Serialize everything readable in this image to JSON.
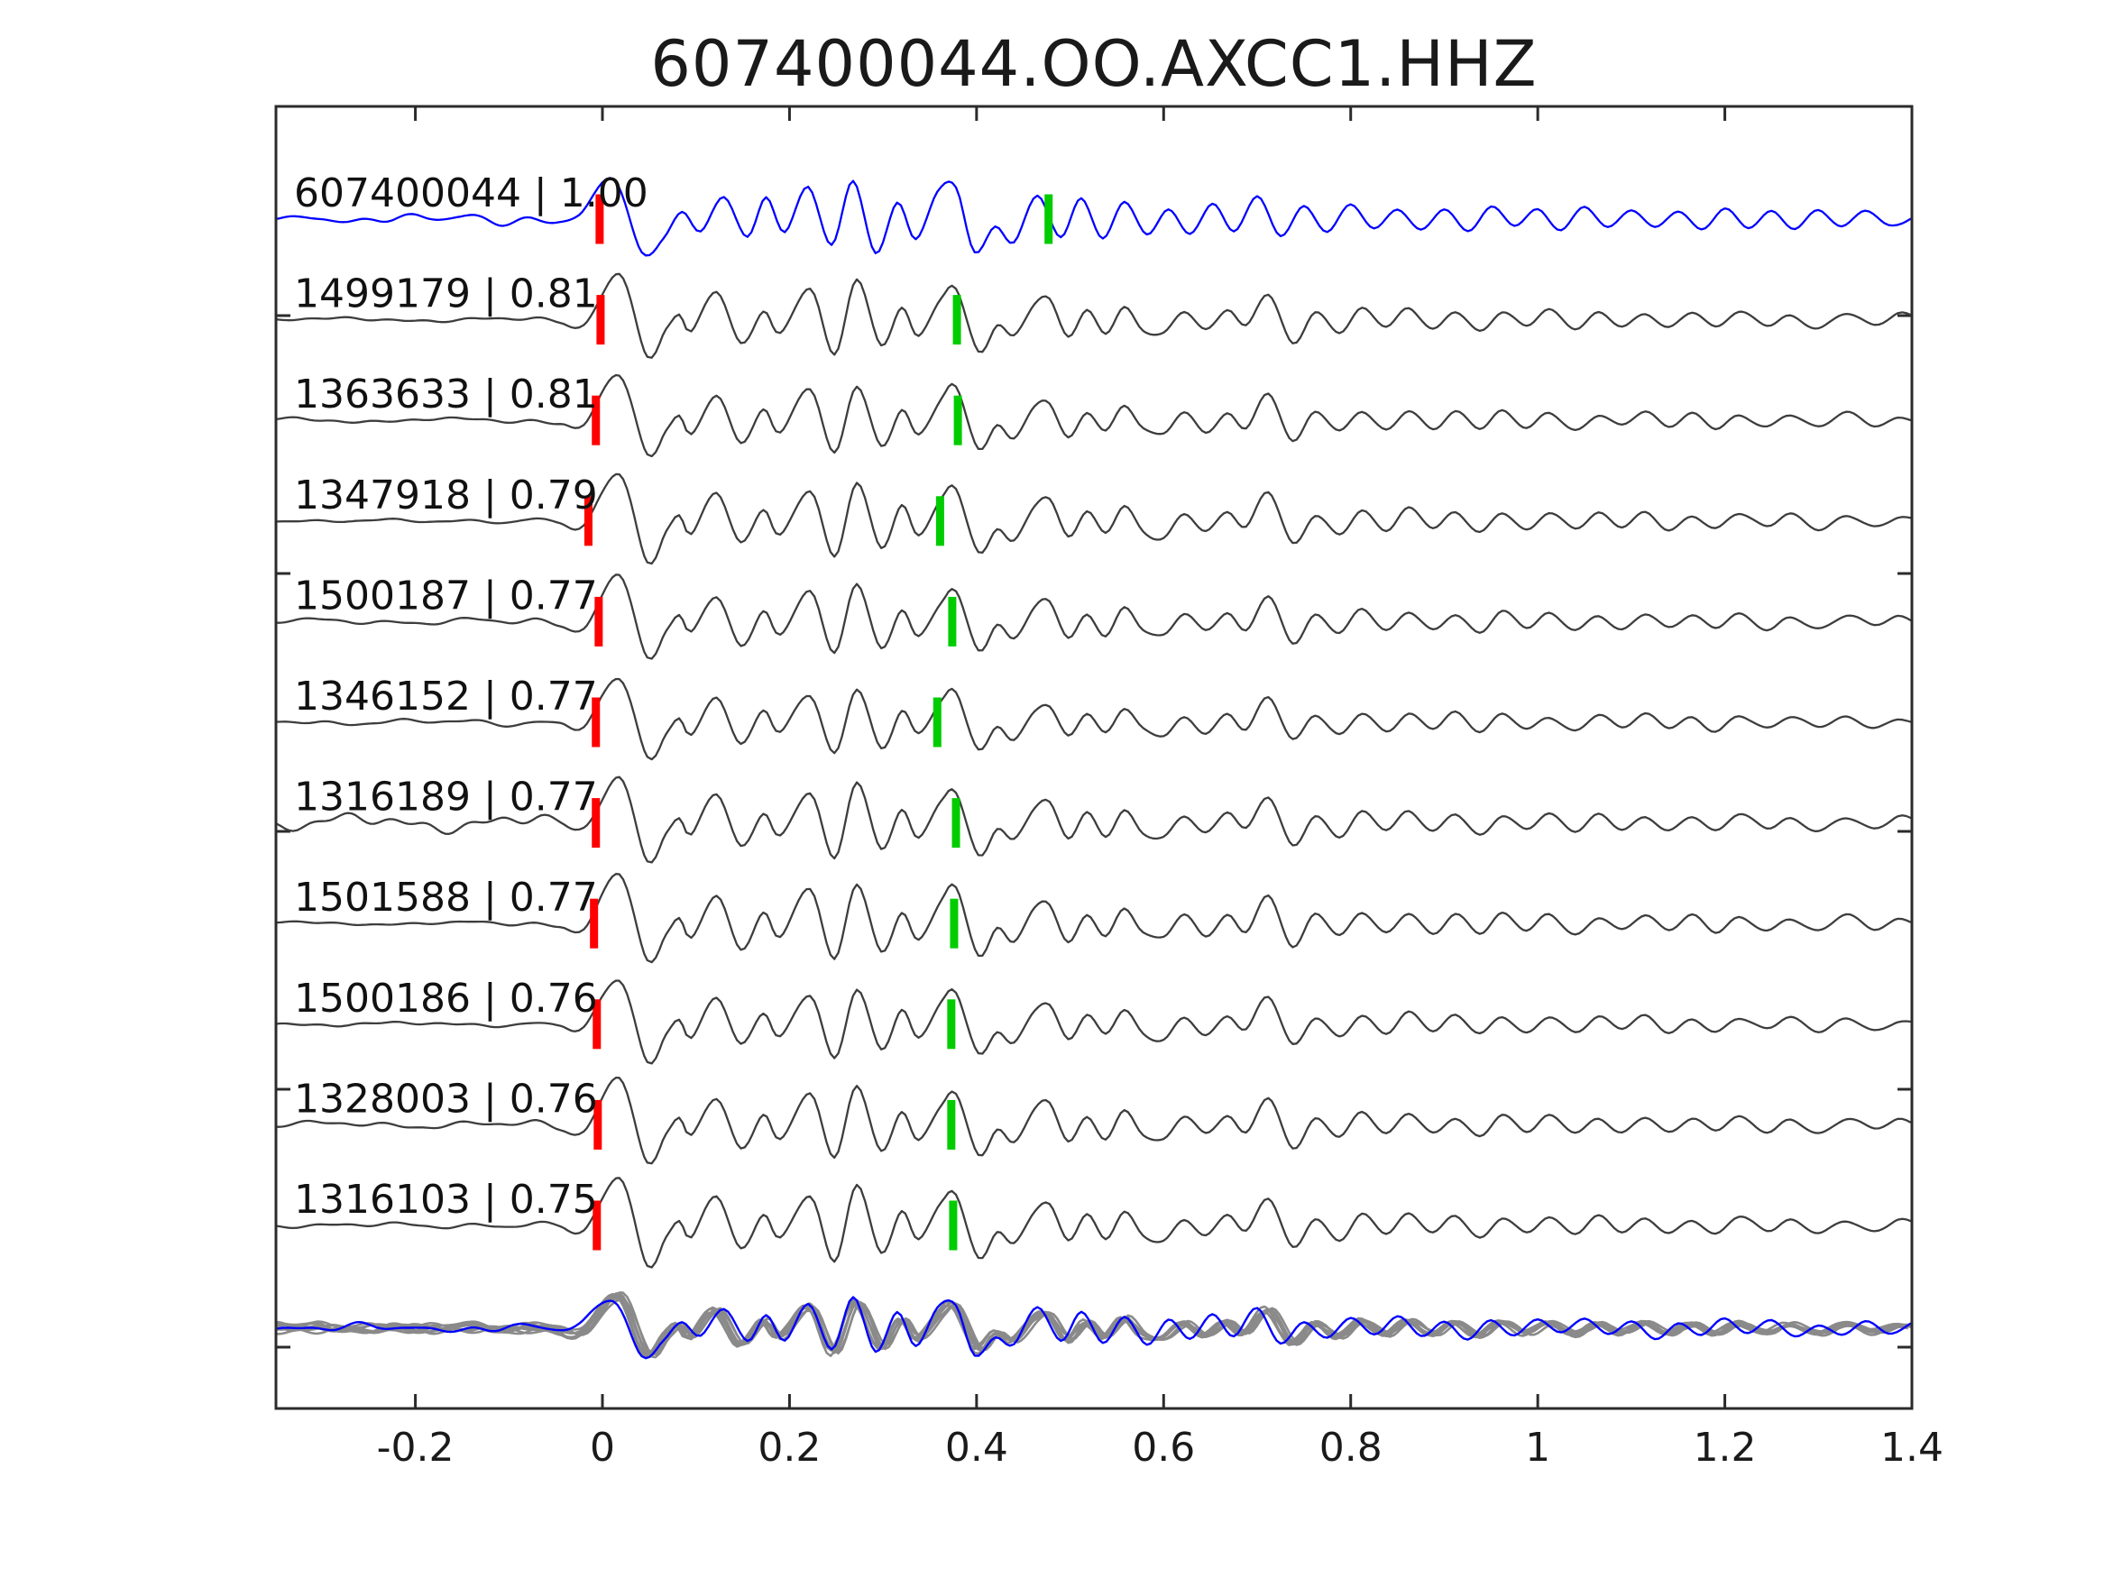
{
  "title": "607400044.OO.AXCC1.HHZ",
  "chart_data": {
    "type": "line",
    "title": "607400044.OO.AXCC1.HHZ",
    "xlim": [
      -0.348,
      1.4
    ],
    "grid": false,
    "legend": "none",
    "xticks": [
      {
        "v": -0.2,
        "label": "-0.2"
      },
      {
        "v": 0,
        "label": "0"
      },
      {
        "v": 0.2,
        "label": "0.2"
      },
      {
        "v": 0.4,
        "label": "0.4"
      },
      {
        "v": 0.6,
        "label": "0.6"
      },
      {
        "v": 0.8,
        "label": "0.8"
      },
      {
        "v": 1,
        "label": "1"
      },
      {
        "v": 1.2,
        "label": "1.2"
      },
      {
        "v": 1.4,
        "label": "1.4"
      }
    ],
    "colors": {
      "template_trace": "#0000ff",
      "detection_trace": "#3d3d3d",
      "overlay_trace": "#8a8a8a",
      "red_pick": "#ff0000",
      "green_pick": "#00cc00",
      "axis": "#2b2b2b",
      "text": "#1a1a1a"
    },
    "traces": [
      {
        "id": "607400044",
        "correlation": "1.00",
        "label": "607400044 | 1.00",
        "kind": "blue",
        "row": 0,
        "red_pick_x": -0.003,
        "green_pick_x": 0.477,
        "amp": 1.0,
        "pre_noise": 4,
        "seed": 11
      },
      {
        "id": "1499179",
        "correlation": "0.81",
        "label": "1499179 | 0.81",
        "kind": "gray",
        "row": 1,
        "red_pick_x": -0.002,
        "green_pick_x": 0.379,
        "amp": 1.0,
        "pre_noise": 3,
        "seed": 2
      },
      {
        "id": "1363633",
        "correlation": "0.81",
        "label": "1363633 | 0.81",
        "kind": "gray",
        "row": 2,
        "red_pick_x": -0.007,
        "green_pick_x": 0.38,
        "amp": 0.95,
        "pre_noise": 3,
        "seed": 3
      },
      {
        "id": "1347918",
        "correlation": "0.79",
        "label": "1347918 | 0.79",
        "kind": "gray",
        "row": 3,
        "red_pick_x": -0.015,
        "green_pick_x": 0.361,
        "amp": 1.02,
        "pre_noise": 2,
        "seed": 4
      },
      {
        "id": "1500187",
        "correlation": "0.77",
        "label": "1500187 | 0.77",
        "kind": "gray",
        "row": 4,
        "red_pick_x": -0.004,
        "green_pick_x": 0.374,
        "amp": 0.97,
        "pre_noise": 3,
        "seed": 5
      },
      {
        "id": "1346152",
        "correlation": "0.77",
        "label": "1346152 | 0.77",
        "kind": "gray",
        "row": 5,
        "red_pick_x": -0.007,
        "green_pick_x": 0.358,
        "amp": 0.9,
        "pre_noise": 3,
        "seed": 6
      },
      {
        "id": "1316189",
        "correlation": "0.77",
        "label": "1316189 | 0.77",
        "kind": "gray",
        "row": 6,
        "red_pick_x": -0.007,
        "green_pick_x": 0.378,
        "amp": 1.0,
        "pre_noise": 11,
        "seed": 7
      },
      {
        "id": "1501588",
        "correlation": "0.77",
        "label": "1501588 | 0.77",
        "kind": "gray",
        "row": 7,
        "red_pick_x": -0.009,
        "green_pick_x": 0.376,
        "amp": 1.05,
        "pre_noise": 2,
        "seed": 8
      },
      {
        "id": "1500186",
        "correlation": "0.76",
        "label": "1500186 | 0.76",
        "kind": "gray",
        "row": 8,
        "red_pick_x": -0.006,
        "green_pick_x": 0.373,
        "amp": 0.95,
        "pre_noise": 3,
        "seed": 9
      },
      {
        "id": "1328003",
        "correlation": "0.76",
        "label": "1328003 | 0.76",
        "kind": "gray",
        "row": 9,
        "red_pick_x": -0.005,
        "green_pick_x": 0.373,
        "amp": 1.0,
        "pre_noise": 4,
        "seed": 10
      },
      {
        "id": "1316103",
        "correlation": "0.75",
        "label": "1316103 | 0.75",
        "kind": "gray",
        "row": 10,
        "red_pick_x": -0.006,
        "green_pick_x": 0.375,
        "amp": 1.02,
        "pre_noise": 3,
        "seed": 12
      }
    ],
    "overlay": {
      "description": "stack of all detection waveforms plus blue template at bottom row",
      "gray_count": 8,
      "amp": 0.78,
      "pre_noise": 6
    },
    "waveform_keypoints": {
      "gray": [
        [
          -0.348,
          0
        ],
        [
          -0.3,
          1
        ],
        [
          -0.26,
          -1
        ],
        [
          -0.22,
          1
        ],
        [
          -0.18,
          -1
        ],
        [
          -0.14,
          2
        ],
        [
          -0.1,
          -2
        ],
        [
          -0.07,
          2
        ],
        [
          -0.045,
          -3
        ],
        [
          -0.02,
          -6
        ],
        [
          0.018,
          52
        ],
        [
          0.048,
          -42
        ],
        [
          0.068,
          -12
        ],
        [
          0.082,
          6
        ],
        [
          0.095,
          -14
        ],
        [
          0.122,
          30
        ],
        [
          0.148,
          -26
        ],
        [
          0.172,
          12
        ],
        [
          0.19,
          -14
        ],
        [
          0.222,
          34
        ],
        [
          0.248,
          -38
        ],
        [
          0.272,
          42
        ],
        [
          0.298,
          -30
        ],
        [
          0.32,
          14
        ],
        [
          0.338,
          -16
        ],
        [
          0.362,
          24
        ],
        [
          0.378,
          36
        ],
        [
          0.402,
          -34
        ],
        [
          0.422,
          -6
        ],
        [
          0.44,
          -20
        ],
        [
          0.462,
          16
        ],
        [
          0.478,
          22
        ],
        [
          0.498,
          -18
        ],
        [
          0.518,
          10
        ],
        [
          0.538,
          -14
        ],
        [
          0.558,
          16
        ],
        [
          0.578,
          -10
        ],
        [
          0.6,
          -16
        ],
        [
          0.622,
          8
        ],
        [
          0.645,
          -12
        ],
        [
          0.668,
          10
        ],
        [
          0.688,
          -8
        ],
        [
          0.712,
          30
        ],
        [
          0.738,
          -24
        ],
        [
          0.762,
          8
        ],
        [
          0.788,
          -14
        ],
        [
          0.812,
          12
        ],
        [
          0.838,
          -10
        ],
        [
          0.862,
          12
        ],
        [
          0.888,
          -9
        ],
        [
          0.912,
          10
        ],
        [
          0.938,
          -12
        ],
        [
          0.962,
          10
        ],
        [
          0.988,
          -8
        ],
        [
          1.012,
          9
        ],
        [
          1.04,
          -10
        ],
        [
          1.065,
          8
        ],
        [
          1.09,
          -7
        ],
        [
          1.115,
          9
        ],
        [
          1.14,
          -8
        ],
        [
          1.165,
          7
        ],
        [
          1.19,
          -9
        ],
        [
          1.215,
          8
        ],
        [
          1.245,
          -7
        ],
        [
          1.27,
          6
        ],
        [
          1.3,
          -8
        ],
        [
          1.33,
          7
        ],
        [
          1.36,
          -6
        ],
        [
          1.385,
          5
        ],
        [
          1.4,
          2
        ]
      ],
      "blue": [
        [
          -0.348,
          0
        ],
        [
          -0.32,
          2
        ],
        [
          -0.29,
          -2
        ],
        [
          -0.26,
          3
        ],
        [
          -0.23,
          -2
        ],
        [
          -0.2,
          4
        ],
        [
          -0.17,
          -3
        ],
        [
          -0.14,
          3
        ],
        [
          -0.11,
          -4
        ],
        [
          -0.08,
          3
        ],
        [
          -0.05,
          -4
        ],
        [
          -0.025,
          6
        ],
        [
          0.012,
          42
        ],
        [
          0.042,
          -38
        ],
        [
          0.065,
          -20
        ],
        [
          0.085,
          8
        ],
        [
          0.105,
          -12
        ],
        [
          0.13,
          26
        ],
        [
          0.155,
          -20
        ],
        [
          0.175,
          22
        ],
        [
          0.195,
          -16
        ],
        [
          0.22,
          36
        ],
        [
          0.245,
          -30
        ],
        [
          0.268,
          44
        ],
        [
          0.292,
          -36
        ],
        [
          0.315,
          20
        ],
        [
          0.335,
          -24
        ],
        [
          0.358,
          30
        ],
        [
          0.378,
          34
        ],
        [
          0.398,
          -38
        ],
        [
          0.42,
          -10
        ],
        [
          0.44,
          -24
        ],
        [
          0.465,
          28
        ],
        [
          0.49,
          -20
        ],
        [
          0.512,
          24
        ],
        [
          0.535,
          -22
        ],
        [
          0.558,
          18
        ],
        [
          0.582,
          -20
        ],
        [
          0.605,
          12
        ],
        [
          0.628,
          -16
        ],
        [
          0.652,
          18
        ],
        [
          0.675,
          -12
        ],
        [
          0.7,
          26
        ],
        [
          0.725,
          -20
        ],
        [
          0.75,
          12
        ],
        [
          0.775,
          -14
        ],
        [
          0.8,
          16
        ],
        [
          0.825,
          -10
        ],
        [
          0.85,
          14
        ],
        [
          0.875,
          -12
        ],
        [
          0.9,
          10
        ],
        [
          0.925,
          -14
        ],
        [
          0.95,
          12
        ],
        [
          0.975,
          -8
        ],
        [
          1.0,
          12
        ],
        [
          1.025,
          -10
        ],
        [
          1.05,
          14
        ],
        [
          1.075,
          -9
        ],
        [
          1.1,
          10
        ],
        [
          1.125,
          -12
        ],
        [
          1.15,
          8
        ],
        [
          1.175,
          -10
        ],
        [
          1.2,
          12
        ],
        [
          1.225,
          -8
        ],
        [
          1.25,
          10
        ],
        [
          1.275,
          -12
        ],
        [
          1.3,
          8
        ],
        [
          1.325,
          -9
        ],
        [
          1.35,
          10
        ],
        [
          1.375,
          -7
        ],
        [
          1.4,
          4
        ]
      ]
    }
  }
}
